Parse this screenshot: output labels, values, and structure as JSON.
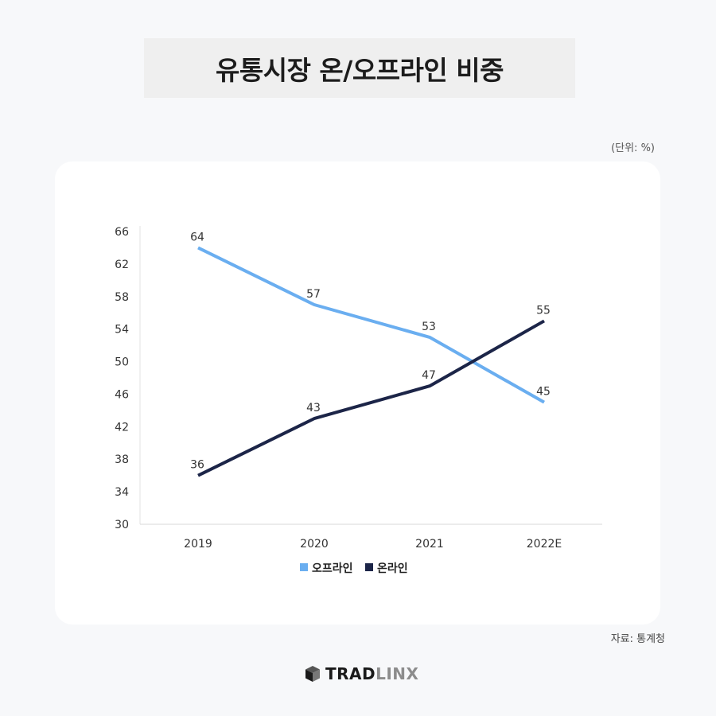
{
  "header": {
    "title": "유통시장 온/오프라인 비중"
  },
  "unit_label": "(단위: %)",
  "source_label": "자료: 통계청",
  "brand": {
    "part1": "TRAD",
    "part2": "LINX",
    "icon": "cube-icon"
  },
  "colors": {
    "offline": "#6aaef0",
    "online": "#1c2548",
    "axis": "#d9d9d9"
  },
  "chart_data": {
    "type": "line",
    "title": "유통시장 온/오프라인 비중",
    "unit": "%",
    "categories": [
      "2019",
      "2020",
      "2021",
      "2022E"
    ],
    "series": [
      {
        "name": "오프라인",
        "values": [
          64,
          57,
          53,
          45
        ],
        "color": "#6aaef0"
      },
      {
        "name": "온라인",
        "values": [
          36,
          43,
          47,
          55
        ],
        "color": "#1c2548"
      }
    ],
    "xlabel": "",
    "ylabel": "",
    "ylim": [
      30,
      66
    ],
    "yticks": [
      30,
      34,
      38,
      42,
      46,
      50,
      54,
      58,
      62,
      66
    ],
    "grid": false,
    "legend_position": "bottom",
    "data_labels": true,
    "source": "자료: 통계청"
  }
}
